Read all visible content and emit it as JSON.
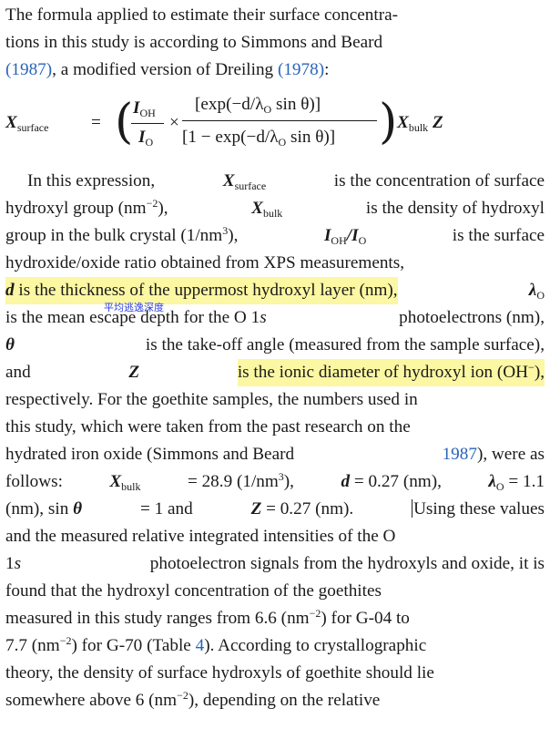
{
  "intro": {
    "line1": "The formula applied to estimate their surface concentra-",
    "line2a": "tions in this study is according to Simmons and Beard",
    "line3_ref1": "(1987)",
    "line3_mid": ", a modified version of Dreiling ",
    "line3_ref2": "(1978)",
    "line3_end": ":"
  },
  "equation": {
    "lhs": "X",
    "lhs_sub": "surface",
    "equals": "=",
    "num1": "I",
    "num1_sub": "OH",
    "den1": "I",
    "den1_sub": "O",
    "times": "×",
    "num2": "[exp(−d/λ",
    "num2_sub": "O",
    "num2_end": " sin θ)]",
    "den2": "[1 − exp(−d/λ",
    "den2_sub": "O",
    "den2_end": " sin θ)]",
    "rhs": "X",
    "rhs_sub": "bulk",
    "rhs_z": "Z"
  },
  "paragraph": {
    "l1_a": "In this expression,",
    "l1_x": "X",
    "l1_xsub": "surface",
    "l1_b": "is the concentration of surface",
    "l2_a": "hydroxyl group (nm",
    "l2_sup": "−2",
    "l2_b": "),",
    "l2_x": "X",
    "l2_xsub": "bulk",
    "l2_c": "is the density of hydroxyl",
    "l3_a": "group in the bulk crystal (1/nm",
    "l3_sup": "3",
    "l3_b": "),",
    "l3_i": "I",
    "l3_isub": "OH",
    "l3_slash": "/",
    "l3_i2": "I",
    "l3_i2sub": "O",
    "l3_c": "is the surface",
    "l4": "hydroxide/oxide ratio obtained from XPS measurements,",
    "l5_d": "d",
    "l5_a": "is the thickness of the uppermost hydroxyl layer (nm),",
    "l5_l": "λ",
    "l5_lsub": "O",
    "note": "平均逃逸深度",
    "l6_a": "is the mean escape depth for the O 1",
    "l6_s": "s",
    "l6_b": "photoelectrons (nm),",
    "l7_t": "θ",
    "l7_a": "is the take-off angle (measured from the sample surface),",
    "l8_a": "and",
    "l8_z": "Z",
    "l8_b": "is the ionic diameter of hydroxyl ion (OH",
    "l8_sup": "−",
    "l8_c": "),",
    "l9": "respectively. For the goethite samples, the numbers used in",
    "l10": "this study, which were taken from the past research on the",
    "l11_a": "hydrated iron oxide (Simmons and Beard",
    "l11_ref": "1987",
    "l11_b": "), were as",
    "l12_a": "follows:",
    "l12_x": "X",
    "l12_xsub": "bulk",
    "l12_b": "= 28.9 (1/nm",
    "l12_sup": "3",
    "l12_c": "),",
    "l12_d": "d",
    "l12_e": "= 0.27 (nm),",
    "l12_l": "λ",
    "l12_lsub": "O",
    "l12_f": "= 1.1",
    "l13_a": "(nm), sin",
    "l13_t": "θ",
    "l13_b": "= 1 and",
    "l13_z": "Z",
    "l13_c": "= 0.27 (nm).",
    "l13_d": "Using these values",
    "l14": "and the measured relative integrated intensities of the O",
    "l15_a": "1",
    "l15_s": "s",
    "l15_b": "photoelectron signals from the hydroxyls and oxide, it is",
    "l16": "found that the hydroxyl concentration of the goethites",
    "l17_a": "measured in this study ranges from 6.6 (nm",
    "l17_sup": "−2",
    "l17_b": ") for G-04 to",
    "l18_a": "7.7 (nm",
    "l18_sup": "−2",
    "l18_b": ") for G-70 (Table",
    "l18_ref": "4",
    "l18_c": "). According to crystallographic",
    "l19": "theory, the density of surface hydroxyls of goethite should lie",
    "l20_a": "somewhere above 6 (nm",
    "l20_sup": "−2",
    "l20_b": "), depending on the relative"
  },
  "colors": {
    "link": "#2a64b8",
    "highlight": "#fbf7a2",
    "annotation": "#2d3fe0"
  }
}
